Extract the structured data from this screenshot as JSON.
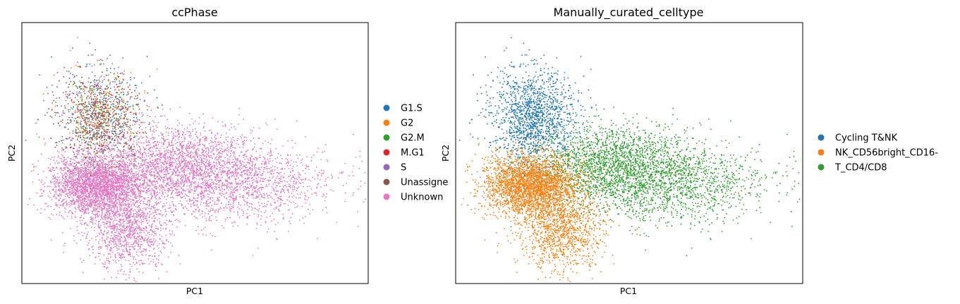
{
  "chart_data": [
    {
      "type": "scatter",
      "title": "ccPhase",
      "xlabel": "PC1",
      "ylabel": "PC2",
      "xlim": [
        -6,
        24
      ],
      "ylim": [
        -8,
        11
      ],
      "grid": false,
      "legend_position": "right",
      "categories": [
        {
          "name": "G1.S",
          "color": "#1f77b4"
        },
        {
          "name": "G2",
          "color": "#ff7f0e"
        },
        {
          "name": "G2.M",
          "color": "#2ca02c"
        },
        {
          "name": "M.G1",
          "color": "#d62728"
        },
        {
          "name": "S",
          "color": "#9467bd"
        },
        {
          "name": "Unassigne",
          "color": "#8c564b"
        },
        {
          "name": "Unknown",
          "color": "#e377c2"
        }
      ]
    },
    {
      "type": "scatter",
      "title": "Manually_curated_celltype",
      "xlabel": "PC1",
      "ylabel": "PC2",
      "xlim": [
        -6,
        24
      ],
      "ylim": [
        -8,
        11
      ],
      "grid": false,
      "legend_position": "right",
      "categories": [
        {
          "name": "Cycling T&NK",
          "color": "#1f77b4"
        },
        {
          "name": "NK_CD56bright_CD16-",
          "color": "#ff7f0e"
        },
        {
          "name": "T_CD4/CD8",
          "color": "#2ca02c"
        }
      ]
    }
  ]
}
